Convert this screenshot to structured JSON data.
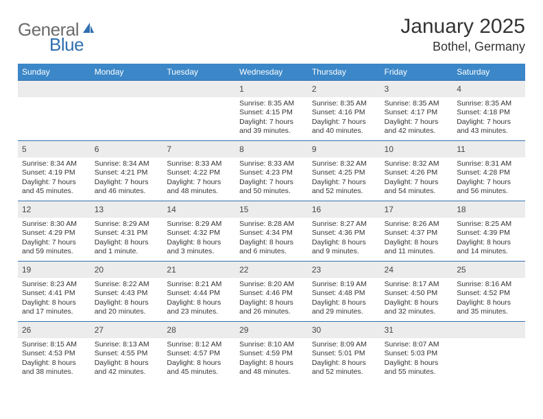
{
  "logo": {
    "text_general": "General",
    "text_blue": "Blue",
    "accent_color": "#2f6fb0",
    "gray_color": "#6b6b6b"
  },
  "header": {
    "month_title": "January 2025",
    "location": "Bothel, Germany"
  },
  "styling": {
    "header_bg": "#3b87c8",
    "header_text": "#ffffff",
    "row_border": "#2f6fb0",
    "daynum_bg": "#ececec",
    "body_bg": "#ffffff",
    "text_color": "#333333",
    "daynum_fontsize": 12,
    "cell_fontsize": 10.5,
    "th_fontsize": 12,
    "title_fontsize": 30,
    "location_fontsize": 18
  },
  "weekdays": [
    "Sunday",
    "Monday",
    "Tuesday",
    "Wednesday",
    "Thursday",
    "Friday",
    "Saturday"
  ],
  "weeks": [
    [
      {
        "day": "",
        "sunrise": "",
        "sunset": "",
        "daylight": ""
      },
      {
        "day": "",
        "sunrise": "",
        "sunset": "",
        "daylight": ""
      },
      {
        "day": "",
        "sunrise": "",
        "sunset": "",
        "daylight": ""
      },
      {
        "day": "1",
        "sunrise": "Sunrise: 8:35 AM",
        "sunset": "Sunset: 4:15 PM",
        "daylight": "Daylight: 7 hours and 39 minutes."
      },
      {
        "day": "2",
        "sunrise": "Sunrise: 8:35 AM",
        "sunset": "Sunset: 4:16 PM",
        "daylight": "Daylight: 7 hours and 40 minutes."
      },
      {
        "day": "3",
        "sunrise": "Sunrise: 8:35 AM",
        "sunset": "Sunset: 4:17 PM",
        "daylight": "Daylight: 7 hours and 42 minutes."
      },
      {
        "day": "4",
        "sunrise": "Sunrise: 8:35 AM",
        "sunset": "Sunset: 4:18 PM",
        "daylight": "Daylight: 7 hours and 43 minutes."
      }
    ],
    [
      {
        "day": "5",
        "sunrise": "Sunrise: 8:34 AM",
        "sunset": "Sunset: 4:19 PM",
        "daylight": "Daylight: 7 hours and 45 minutes."
      },
      {
        "day": "6",
        "sunrise": "Sunrise: 8:34 AM",
        "sunset": "Sunset: 4:21 PM",
        "daylight": "Daylight: 7 hours and 46 minutes."
      },
      {
        "day": "7",
        "sunrise": "Sunrise: 8:33 AM",
        "sunset": "Sunset: 4:22 PM",
        "daylight": "Daylight: 7 hours and 48 minutes."
      },
      {
        "day": "8",
        "sunrise": "Sunrise: 8:33 AM",
        "sunset": "Sunset: 4:23 PM",
        "daylight": "Daylight: 7 hours and 50 minutes."
      },
      {
        "day": "9",
        "sunrise": "Sunrise: 8:32 AM",
        "sunset": "Sunset: 4:25 PM",
        "daylight": "Daylight: 7 hours and 52 minutes."
      },
      {
        "day": "10",
        "sunrise": "Sunrise: 8:32 AM",
        "sunset": "Sunset: 4:26 PM",
        "daylight": "Daylight: 7 hours and 54 minutes."
      },
      {
        "day": "11",
        "sunrise": "Sunrise: 8:31 AM",
        "sunset": "Sunset: 4:28 PM",
        "daylight": "Daylight: 7 hours and 56 minutes."
      }
    ],
    [
      {
        "day": "12",
        "sunrise": "Sunrise: 8:30 AM",
        "sunset": "Sunset: 4:29 PM",
        "daylight": "Daylight: 7 hours and 59 minutes."
      },
      {
        "day": "13",
        "sunrise": "Sunrise: 8:29 AM",
        "sunset": "Sunset: 4:31 PM",
        "daylight": "Daylight: 8 hours and 1 minute."
      },
      {
        "day": "14",
        "sunrise": "Sunrise: 8:29 AM",
        "sunset": "Sunset: 4:32 PM",
        "daylight": "Daylight: 8 hours and 3 minutes."
      },
      {
        "day": "15",
        "sunrise": "Sunrise: 8:28 AM",
        "sunset": "Sunset: 4:34 PM",
        "daylight": "Daylight: 8 hours and 6 minutes."
      },
      {
        "day": "16",
        "sunrise": "Sunrise: 8:27 AM",
        "sunset": "Sunset: 4:36 PM",
        "daylight": "Daylight: 8 hours and 9 minutes."
      },
      {
        "day": "17",
        "sunrise": "Sunrise: 8:26 AM",
        "sunset": "Sunset: 4:37 PM",
        "daylight": "Daylight: 8 hours and 11 minutes."
      },
      {
        "day": "18",
        "sunrise": "Sunrise: 8:25 AM",
        "sunset": "Sunset: 4:39 PM",
        "daylight": "Daylight: 8 hours and 14 minutes."
      }
    ],
    [
      {
        "day": "19",
        "sunrise": "Sunrise: 8:23 AM",
        "sunset": "Sunset: 4:41 PM",
        "daylight": "Daylight: 8 hours and 17 minutes."
      },
      {
        "day": "20",
        "sunrise": "Sunrise: 8:22 AM",
        "sunset": "Sunset: 4:43 PM",
        "daylight": "Daylight: 8 hours and 20 minutes."
      },
      {
        "day": "21",
        "sunrise": "Sunrise: 8:21 AM",
        "sunset": "Sunset: 4:44 PM",
        "daylight": "Daylight: 8 hours and 23 minutes."
      },
      {
        "day": "22",
        "sunrise": "Sunrise: 8:20 AM",
        "sunset": "Sunset: 4:46 PM",
        "daylight": "Daylight: 8 hours and 26 minutes."
      },
      {
        "day": "23",
        "sunrise": "Sunrise: 8:19 AM",
        "sunset": "Sunset: 4:48 PM",
        "daylight": "Daylight: 8 hours and 29 minutes."
      },
      {
        "day": "24",
        "sunrise": "Sunrise: 8:17 AM",
        "sunset": "Sunset: 4:50 PM",
        "daylight": "Daylight: 8 hours and 32 minutes."
      },
      {
        "day": "25",
        "sunrise": "Sunrise: 8:16 AM",
        "sunset": "Sunset: 4:52 PM",
        "daylight": "Daylight: 8 hours and 35 minutes."
      }
    ],
    [
      {
        "day": "26",
        "sunrise": "Sunrise: 8:15 AM",
        "sunset": "Sunset: 4:53 PM",
        "daylight": "Daylight: 8 hours and 38 minutes."
      },
      {
        "day": "27",
        "sunrise": "Sunrise: 8:13 AM",
        "sunset": "Sunset: 4:55 PM",
        "daylight": "Daylight: 8 hours and 42 minutes."
      },
      {
        "day": "28",
        "sunrise": "Sunrise: 8:12 AM",
        "sunset": "Sunset: 4:57 PM",
        "daylight": "Daylight: 8 hours and 45 minutes."
      },
      {
        "day": "29",
        "sunrise": "Sunrise: 8:10 AM",
        "sunset": "Sunset: 4:59 PM",
        "daylight": "Daylight: 8 hours and 48 minutes."
      },
      {
        "day": "30",
        "sunrise": "Sunrise: 8:09 AM",
        "sunset": "Sunset: 5:01 PM",
        "daylight": "Daylight: 8 hours and 52 minutes."
      },
      {
        "day": "31",
        "sunrise": "Sunrise: 8:07 AM",
        "sunset": "Sunset: 5:03 PM",
        "daylight": "Daylight: 8 hours and 55 minutes."
      },
      {
        "day": "",
        "sunrise": "",
        "sunset": "",
        "daylight": ""
      }
    ]
  ]
}
